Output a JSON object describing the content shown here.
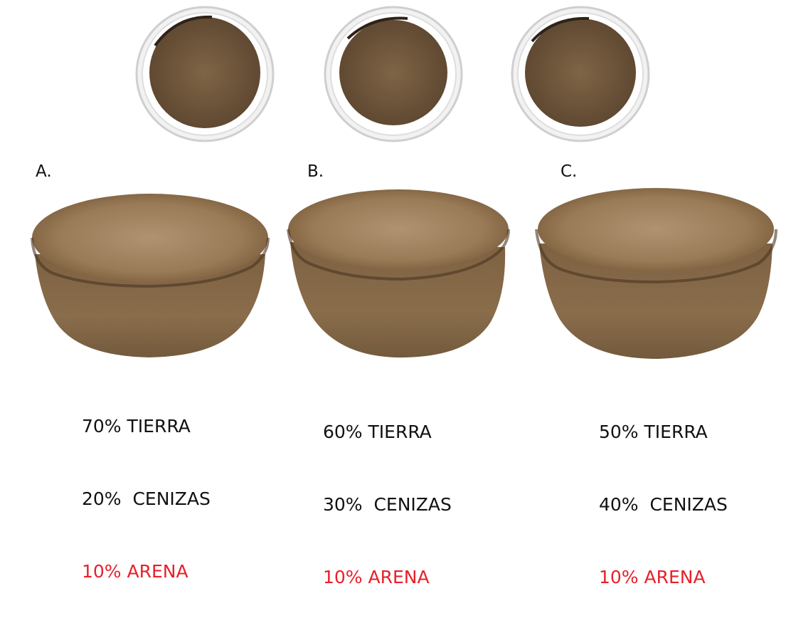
{
  "samples": [
    {
      "letter": "A.",
      "rows": [
        "70% TIERRA",
        "20%  CENIZAS",
        "10% ARENA"
      ]
    },
    {
      "letter": "B.",
      "rows": [
        "60% TIERRA",
        "30%  CENIZAS",
        "10% ARENA"
      ]
    },
    {
      "letter": "C.",
      "rows": [
        "50% TIERRA",
        "40%  CENIZAS",
        "10% ARENA"
      ]
    }
  ],
  "colors": {
    "highlight": "#e8202a",
    "text": "#111111",
    "soil": "#8a6a45",
    "soil_top": "#a1845e",
    "cup_rim": "#e6e6e6"
  }
}
